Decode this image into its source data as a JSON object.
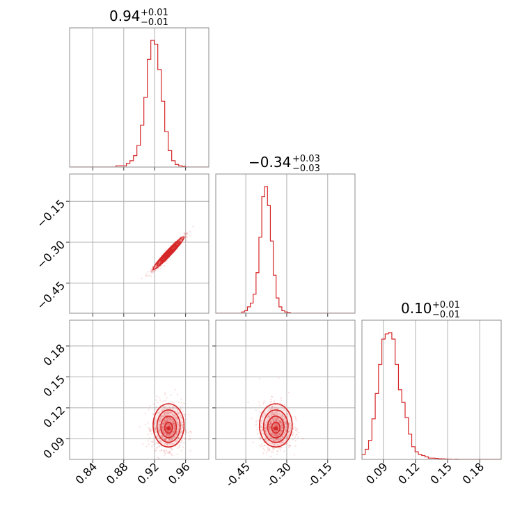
{
  "accent_color": "#d62728",
  "chart_data": [
    {
      "panel": "hist-p0",
      "type": "histogram",
      "title_value": "0.94",
      "title_upper": "+0.01",
      "title_lower": "−0.01",
      "xlim": [
        0.81,
        0.99
      ],
      "x_ticks": [
        0.84,
        0.88,
        0.92,
        0.96
      ],
      "bins_start": 0.87,
      "bin_width": 0.0045,
      "counts": [
        0.01,
        0.01,
        0.01,
        0.03,
        0.05,
        0.09,
        0.17,
        0.33,
        0.55,
        0.85,
        1.0,
        0.97,
        0.77,
        0.52,
        0.28,
        0.13,
        0.05,
        0.02,
        0.01,
        0.005
      ]
    },
    {
      "panel": "hist-p1",
      "type": "histogram",
      "title_value": "−0.34",
      "title_upper": "+0.03",
      "title_lower": "−0.03",
      "xlim": [
        -0.56,
        -0.05
      ],
      "x_ticks": [
        -0.45,
        -0.3,
        -0.15
      ],
      "x_tick_labels": [
        "−0.45",
        "−0.30",
        "−0.15"
      ],
      "bins_start": -0.465,
      "bin_width": 0.0105,
      "counts": [
        0.01,
        0.02,
        0.05,
        0.08,
        0.15,
        0.32,
        0.6,
        0.92,
        1.0,
        0.85,
        0.57,
        0.3,
        0.12,
        0.05,
        0.02,
        0.01,
        0.005
      ]
    },
    {
      "panel": "hist-p2",
      "type": "histogram",
      "title_value": "0.10",
      "title_upper": "+0.01",
      "title_lower": "−0.01",
      "xlim": [
        0.07,
        0.2
      ],
      "x_ticks": [
        0.09,
        0.12,
        0.15,
        0.18
      ],
      "bins_start": 0.07,
      "bin_width": 0.0031,
      "counts": [
        0.04,
        0.08,
        0.15,
        0.32,
        0.52,
        0.75,
        0.95,
        0.99,
        1.0,
        0.95,
        0.75,
        0.55,
        0.45,
        0.33,
        0.2,
        0.1,
        0.06,
        0.04,
        0.03,
        0.02,
        0.01,
        0.01,
        0.008,
        0.005,
        0.004,
        0.003,
        0.002,
        0.001,
        0.002,
        0.001,
        0.001,
        0.001,
        0.001,
        0.001,
        0.001,
        0.001,
        0.001,
        0.001,
        0.001,
        0.001,
        0.001,
        0.001
      ]
    },
    {
      "panel": "scatter-p0-p1",
      "type": "scatter",
      "xlim": [
        0.81,
        0.99
      ],
      "ylim": [
        -0.56,
        -0.05
      ],
      "x_ticks": [
        0.84,
        0.88,
        0.92,
        0.96
      ],
      "y_ticks": [
        -0.15,
        -0.3,
        -0.45
      ],
      "y_tick_labels": [
        "−0.15",
        "−0.30",
        "−0.45"
      ],
      "center": [
        0.938,
        -0.34
      ],
      "std": [
        0.01,
        0.03
      ],
      "correlation": 0.97
    },
    {
      "panel": "scatter-p0-p2",
      "type": "scatter",
      "xlim": [
        0.81,
        0.99
      ],
      "ylim": [
        0.07,
        0.205
      ],
      "x_ticks": [
        0.84,
        0.88,
        0.92,
        0.96
      ],
      "y_ticks": [
        0.09,
        0.12,
        0.15,
        0.18
      ],
      "center": [
        0.938,
        0.1
      ],
      "std": [
        0.01,
        0.01
      ],
      "correlation": 0.0
    },
    {
      "panel": "scatter-p1-p2",
      "type": "scatter",
      "xlim": [
        -0.56,
        -0.05
      ],
      "ylim": [
        0.07,
        0.205
      ],
      "x_ticks": [
        -0.45,
        -0.3,
        -0.15
      ],
      "y_ticks": [
        0.09,
        0.12,
        0.15,
        0.18
      ],
      "center": [
        -0.34,
        0.1
      ],
      "std": [
        0.03,
        0.01
      ],
      "correlation": 0.0
    }
  ],
  "panels": {
    "h0": {
      "title_value": "0.94",
      "title_upper": "+0.01",
      "title_lower": "−0.01"
    },
    "h1": {
      "title_value": "−0.34",
      "title_upper": "+0.03",
      "title_lower": "−0.03"
    },
    "h2": {
      "title_value": "0.10",
      "title_upper": "+0.01",
      "title_lower": "−0.01"
    }
  }
}
